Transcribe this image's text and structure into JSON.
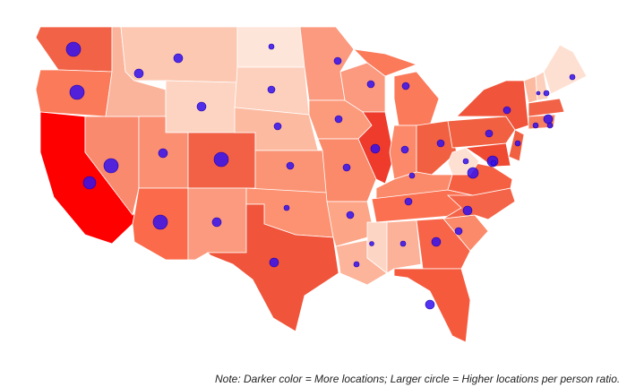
{
  "note": "Note: Darker color = More locations; Larger circle = Higher locations per person ratio."
}
